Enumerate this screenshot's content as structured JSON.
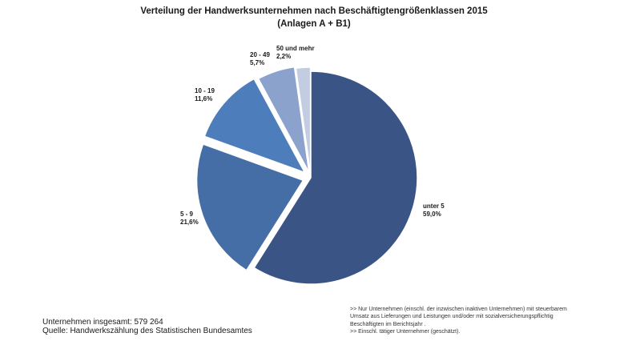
{
  "chart_data": {
    "type": "pie",
    "title": "Verteilung der Handwerksunternehmen nach Beschäftigtengrößenklassen 2015",
    "subtitle": "(Anlagen A + B1)",
    "unit": "%",
    "slices": [
      {
        "category": "unter 5",
        "value": 59.0,
        "label": "59,0%",
        "color": "#3a5585"
      },
      {
        "category": "5 - 9",
        "value": 21.6,
        "label": "21,6%",
        "color": "#456ea6"
      },
      {
        "category": "10 - 19",
        "value": 11.6,
        "label": "11,6%",
        "color": "#4e7dbc"
      },
      {
        "category": "20 - 49",
        "value": 5.7,
        "label": "5,7%",
        "color": "#8aa2cc"
      },
      {
        "category": "50 und mehr",
        "value": 2.2,
        "label": "2,2%",
        "color": "#c2cde2"
      }
    ]
  },
  "footer": {
    "total": "Unternehmen insgesamt: 579 264",
    "source": "Quelle: Handwerkszählung des Statistischen Bundesamtes"
  },
  "footnotes": [
    ">> Nur Unternehmen (einschl. der inzwischen inaktiven Unternehmen) mit steuerbarem",
    "Umsatz aus Lieferungen und Leistungen und/oder mit sozialversicherungspflichtig",
    "Beschäftigten im Berichtsjahr .",
    ">> Einschl. tätiger Unternehmer (geschätzt)."
  ]
}
